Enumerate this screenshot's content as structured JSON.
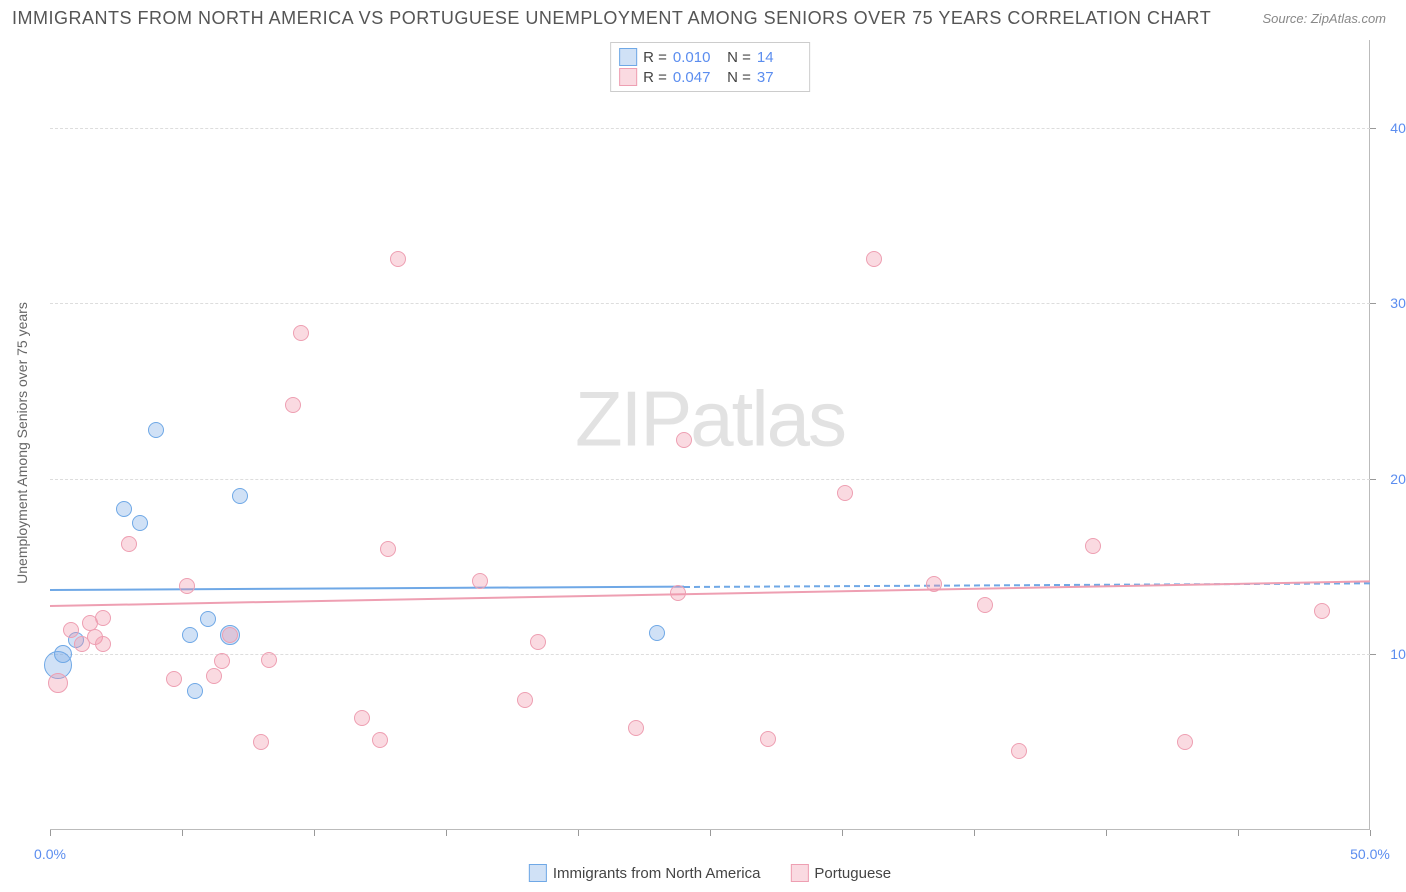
{
  "title": "IMMIGRANTS FROM NORTH AMERICA VS PORTUGUESE UNEMPLOYMENT AMONG SENIORS OVER 75 YEARS CORRELATION CHART",
  "source": "Source: ZipAtlas.com",
  "watermark_a": "ZIP",
  "watermark_b": "atlas",
  "y_axis_label": "Unemployment Among Seniors over 75 years",
  "chart": {
    "type": "scatter",
    "xlim": [
      0,
      50
    ],
    "ylim": [
      0,
      45
    ],
    "x_ticks": [
      0,
      5,
      10,
      15,
      20,
      25,
      30,
      35,
      40,
      45,
      50
    ],
    "x_tick_labels": {
      "0": "0.0%",
      "50": "50.0%"
    },
    "y_gridlines": [
      10,
      20,
      30,
      40
    ],
    "y_tick_labels": {
      "10": "10.0%",
      "20": "20.0%",
      "30": "30.0%",
      "40": "40.0%"
    },
    "background_color": "#ffffff",
    "grid_color": "#dddddd",
    "axis_color": "#bbbbbb",
    "tick_label_color": "#5b8def"
  },
  "series": [
    {
      "name": "Immigrants from North America",
      "label": "Immigrants from North America",
      "color_fill": "rgba(120,170,230,0.35)",
      "color_stroke": "#6fa8e6",
      "r_value": "0.010",
      "n_value": "14",
      "line": {
        "y_start": 13.7,
        "y_end": 14.1,
        "solid_until_x": 24,
        "x_end": 50
      },
      "points": [
        {
          "x": 0.3,
          "y": 9.4,
          "r": 14
        },
        {
          "x": 0.5,
          "y": 10.0,
          "r": 9
        },
        {
          "x": 1.0,
          "y": 10.8,
          "r": 8
        },
        {
          "x": 2.8,
          "y": 18.3,
          "r": 8
        },
        {
          "x": 3.4,
          "y": 17.5,
          "r": 8
        },
        {
          "x": 4.0,
          "y": 22.8,
          "r": 8
        },
        {
          "x": 5.3,
          "y": 11.1,
          "r": 8
        },
        {
          "x": 6.0,
          "y": 12.0,
          "r": 8
        },
        {
          "x": 5.5,
          "y": 7.9,
          "r": 8
        },
        {
          "x": 6.8,
          "y": 11.1,
          "r": 10
        },
        {
          "x": 7.2,
          "y": 19.0,
          "r": 8
        },
        {
          "x": 23.0,
          "y": 11.2,
          "r": 8
        }
      ]
    },
    {
      "name": "Portuguese",
      "label": "Portuguese",
      "color_fill": "rgba(240,150,170,0.35)",
      "color_stroke": "#ee9fb2",
      "r_value": "0.047",
      "n_value": "37",
      "line": {
        "y_start": 12.8,
        "y_end": 14.2,
        "solid_until_x": 50,
        "x_end": 50
      },
      "points": [
        {
          "x": 0.3,
          "y": 8.4,
          "r": 10
        },
        {
          "x": 0.8,
          "y": 11.4,
          "r": 8
        },
        {
          "x": 1.2,
          "y": 10.6,
          "r": 8
        },
        {
          "x": 1.5,
          "y": 11.8,
          "r": 8
        },
        {
          "x": 1.7,
          "y": 11.0,
          "r": 8
        },
        {
          "x": 2.0,
          "y": 12.1,
          "r": 8
        },
        {
          "x": 2.0,
          "y": 10.6,
          "r": 8
        },
        {
          "x": 3.0,
          "y": 16.3,
          "r": 8
        },
        {
          "x": 4.7,
          "y": 8.6,
          "r": 8
        },
        {
          "x": 5.2,
          "y": 13.9,
          "r": 8
        },
        {
          "x": 6.2,
          "y": 8.8,
          "r": 8
        },
        {
          "x": 6.5,
          "y": 9.6,
          "r": 8
        },
        {
          "x": 6.8,
          "y": 11.1,
          "r": 8
        },
        {
          "x": 8.0,
          "y": 5.0,
          "r": 8
        },
        {
          "x": 8.3,
          "y": 9.7,
          "r": 8
        },
        {
          "x": 9.2,
          "y": 24.2,
          "r": 8
        },
        {
          "x": 9.5,
          "y": 28.3,
          "r": 8
        },
        {
          "x": 11.8,
          "y": 6.4,
          "r": 8
        },
        {
          "x": 12.5,
          "y": 5.1,
          "r": 8
        },
        {
          "x": 12.8,
          "y": 16.0,
          "r": 8
        },
        {
          "x": 13.2,
          "y": 32.5,
          "r": 8
        },
        {
          "x": 16.3,
          "y": 14.2,
          "r": 8
        },
        {
          "x": 18.0,
          "y": 7.4,
          "r": 8
        },
        {
          "x": 18.5,
          "y": 10.7,
          "r": 8
        },
        {
          "x": 22.2,
          "y": 5.8,
          "r": 8
        },
        {
          "x": 23.8,
          "y": 13.5,
          "r": 8
        },
        {
          "x": 24.0,
          "y": 22.2,
          "r": 8
        },
        {
          "x": 27.2,
          "y": 5.2,
          "r": 8
        },
        {
          "x": 30.1,
          "y": 19.2,
          "r": 8
        },
        {
          "x": 31.2,
          "y": 32.5,
          "r": 8
        },
        {
          "x": 33.5,
          "y": 14.0,
          "r": 8
        },
        {
          "x": 35.4,
          "y": 12.8,
          "r": 8
        },
        {
          "x": 36.7,
          "y": 4.5,
          "r": 8
        },
        {
          "x": 39.5,
          "y": 16.2,
          "r": 8
        },
        {
          "x": 43.0,
          "y": 5.0,
          "r": 8
        },
        {
          "x": 48.2,
          "y": 12.5,
          "r": 8
        }
      ]
    }
  ],
  "legend_top_labels": {
    "R": "R =",
    "N": "N ="
  }
}
